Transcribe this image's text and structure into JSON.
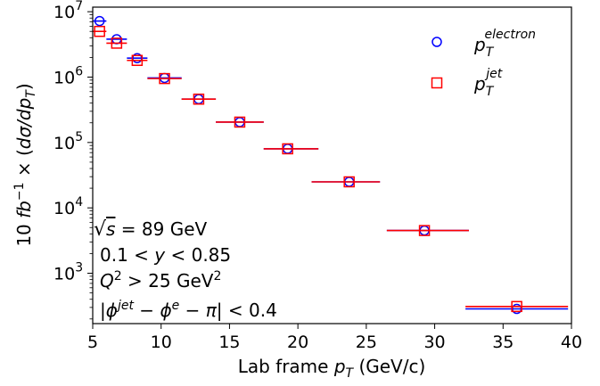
{
  "chart_data": {
    "type": "scatter",
    "xlabel": "Lab frame p_T (GeV/c)",
    "ylabel": "10 fb^-1 × (dσ/dp_T)",
    "xlim": [
      5,
      40
    ],
    "ylim_log10": [
      2.23,
      7.07
    ],
    "yscale": "log",
    "grid": false,
    "legend_position": "top-right",
    "x_ticks": [
      "5",
      "10",
      "15",
      "20",
      "25",
      "30",
      "35",
      "40"
    ],
    "y_ticks": [
      "10^3",
      "10^4",
      "10^5",
      "10^6",
      "10^7"
    ],
    "annotations": [
      "√s = 89 GeV",
      "0.1 < y < 0.85",
      "Q² > 25 GeV²",
      "|φ^jet − φ^e − π| < 0.4"
    ],
    "series": [
      {
        "name": "p_T^electron",
        "legend_main": "p",
        "legend_sub": "T",
        "legend_sup": "electron",
        "marker": "circle",
        "color": "#0000ff",
        "x": [
          5.5,
          6.75,
          8.25,
          10.25,
          12.75,
          15.75,
          19.25,
          23.75,
          29.25,
          36.0
        ],
        "xerr_low": [
          0.5,
          0.75,
          0.75,
          1.25,
          1.25,
          1.75,
          1.75,
          2.75,
          2.75,
          3.75
        ],
        "xerr_high": [
          0.5,
          0.75,
          0.75,
          1.25,
          1.25,
          1.75,
          2.25,
          2.25,
          3.25,
          3.75
        ],
        "y": [
          7200000,
          3800000,
          1950000,
          970000,
          460000,
          205000,
          80000,
          25000,
          4500,
          285
        ]
      },
      {
        "name": "p_T^jet",
        "legend_main": "p",
        "legend_sub": "T",
        "legend_sup": "jet",
        "marker": "square",
        "color": "#ff0000",
        "x": [
          5.5,
          6.75,
          8.25,
          10.25,
          12.75,
          15.75,
          19.25,
          23.75,
          29.25,
          36.0
        ],
        "xerr_low": [
          0.5,
          0.75,
          0.75,
          1.25,
          1.25,
          1.75,
          1.75,
          2.75,
          2.75,
          3.75
        ],
        "xerr_high": [
          0.5,
          0.75,
          0.75,
          1.25,
          1.25,
          1.75,
          2.25,
          2.25,
          3.25,
          3.75
        ],
        "y": [
          5000000,
          3300000,
          1800000,
          950000,
          460000,
          205000,
          80000,
          25000,
          4500,
          310
        ]
      }
    ]
  }
}
